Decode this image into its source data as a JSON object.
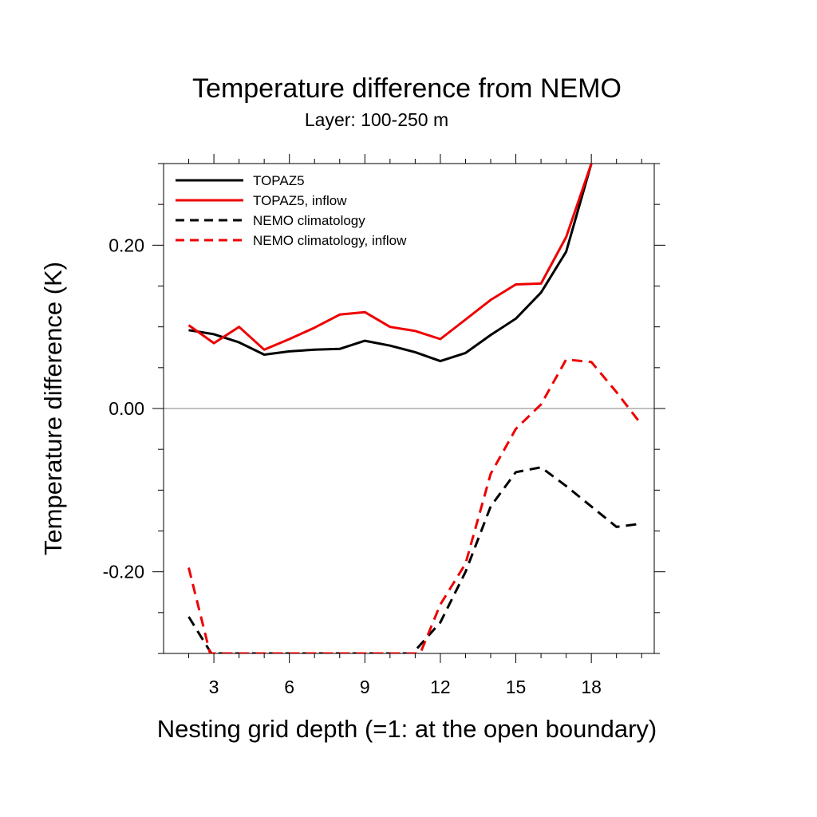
{
  "chart_data": {
    "type": "line",
    "title": "Temperature difference from NEMO",
    "subtitle": "Layer: 100-250 m",
    "xlabel": "Nesting grid depth (=1: at the open boundary)",
    "ylabel": "Temperature difference (K)",
    "xlim": [
      1.0,
      20.5
    ],
    "ylim": [
      -0.3,
      0.3
    ],
    "x_ticks": [
      3,
      6,
      9,
      12,
      15,
      18
    ],
    "x_tick_labels": [
      "3",
      "6",
      "9",
      "12",
      "15",
      "18"
    ],
    "y_ticks": [
      -0.2,
      0.0,
      0.2
    ],
    "y_tick_labels": [
      "-0.20",
      "0.00",
      "0.20"
    ],
    "zero_line": true,
    "grid": false,
    "legend_position": "top-left",
    "series": [
      {
        "name": "TOPAZ5",
        "color": "#000000",
        "dash": "solid",
        "x": [
          2,
          3,
          4,
          5,
          6,
          7,
          8,
          9,
          10,
          11,
          12,
          13,
          14,
          15,
          16,
          17,
          18
        ],
        "values": [
          0.096,
          0.091,
          0.081,
          0.066,
          0.07,
          0.072,
          0.073,
          0.083,
          0.077,
          0.069,
          0.058,
          0.068,
          0.09,
          0.11,
          0.142,
          0.192,
          0.3
        ]
      },
      {
        "name": "TOPAZ5, inflow",
        "color": "#ee0000",
        "dash": "solid",
        "x": [
          2,
          3,
          4,
          5,
          6,
          7,
          8,
          9,
          10,
          11,
          12,
          13,
          14,
          15,
          16,
          17,
          18
        ],
        "values": [
          0.102,
          0.08,
          0.1,
          0.072,
          0.085,
          0.099,
          0.115,
          0.118,
          0.1,
          0.095,
          0.085,
          0.109,
          0.133,
          0.152,
          0.153,
          0.21,
          0.3
        ]
      },
      {
        "name": "NEMO climatology",
        "color": "#000000",
        "dash": "dashed",
        "x": [
          2,
          2.9,
          10.9,
          12,
          13,
          14,
          15,
          16,
          17,
          18,
          19,
          20
        ],
        "values": [
          -0.255,
          -0.3,
          -0.3,
          -0.262,
          -0.2,
          -0.12,
          -0.078,
          -0.072,
          -0.095,
          -0.12,
          -0.145,
          -0.141
        ]
      },
      {
        "name": "NEMO climatology, inflow",
        "color": "#ee0000",
        "dash": "dashed",
        "x": [
          2,
          2.85,
          11.2,
          12,
          13,
          14,
          15,
          16,
          17,
          18,
          19,
          20
        ],
        "values": [
          -0.195,
          -0.3,
          -0.3,
          -0.24,
          -0.19,
          -0.08,
          -0.025,
          0.005,
          0.06,
          0.057,
          0.02,
          -0.02
        ]
      }
    ]
  }
}
